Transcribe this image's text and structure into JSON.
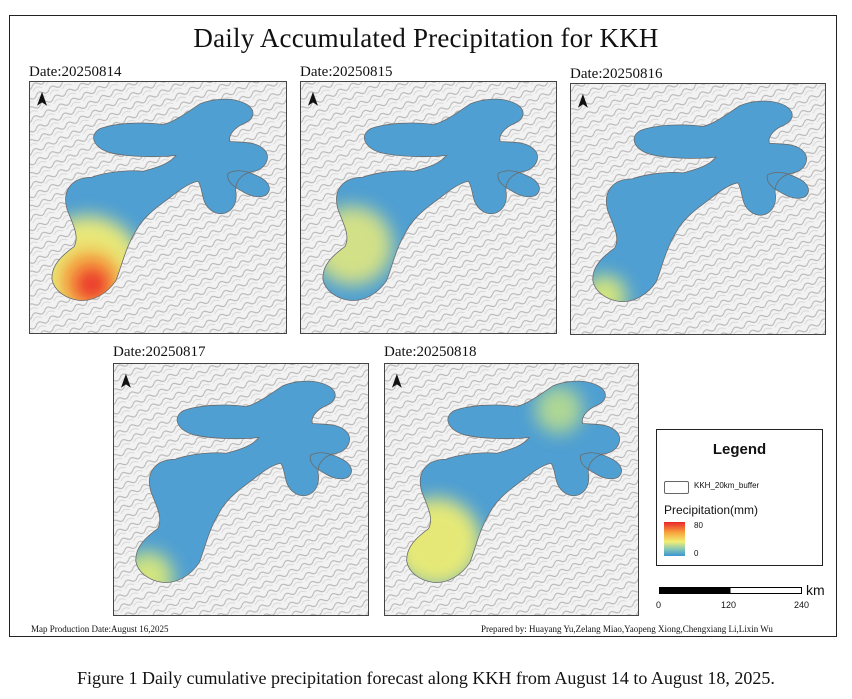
{
  "title": "Daily Accumulated Precipitation for KKH",
  "panels": [
    {
      "date": "Date:20250814",
      "hotspots": [
        {
          "region": "southwest lake tip",
          "level": "very high"
        },
        {
          "region": "southwest lobe",
          "level": "moderate"
        }
      ]
    },
    {
      "date": "Date:20250815",
      "hotspots": [
        {
          "region": "southwest lobe",
          "level": "low"
        }
      ]
    },
    {
      "date": "Date:20250816",
      "hotspots": [
        {
          "region": "southwest tip",
          "level": "low"
        }
      ]
    },
    {
      "date": "Date:20250817",
      "hotspots": [
        {
          "region": "southwest tip",
          "level": "low"
        }
      ]
    },
    {
      "date": "Date:20250818",
      "hotspots": [
        {
          "region": "southwest lobe",
          "level": "low"
        },
        {
          "region": "northeast arm",
          "level": "low"
        }
      ]
    }
  ],
  "north_arrow_icon": "north-arrow-icon",
  "legend": {
    "title": "Legend",
    "buffer_label": "KKH_20km_buffer",
    "precip_label": "Precipitation(mm)",
    "max": "80",
    "min": "0",
    "ramp_colors": [
      "#e8262a",
      "#f7a13a",
      "#f2ee74",
      "#86c7b6",
      "#3a94d2"
    ]
  },
  "scale": {
    "unit": "km",
    "ticks": [
      "0",
      "120",
      "240"
    ]
  },
  "footer": {
    "production_date": "Map Production Date:August 16,2025",
    "prepared_by": "Prepared by: Huayang Yu,Zelang Miao,Yaopeng Xiong,Chengxiang Li,Lixin Wu"
  },
  "caption": "Figure 1 Daily cumulative precipitation forecast along KKH from August 14 to August 18, 2025."
}
